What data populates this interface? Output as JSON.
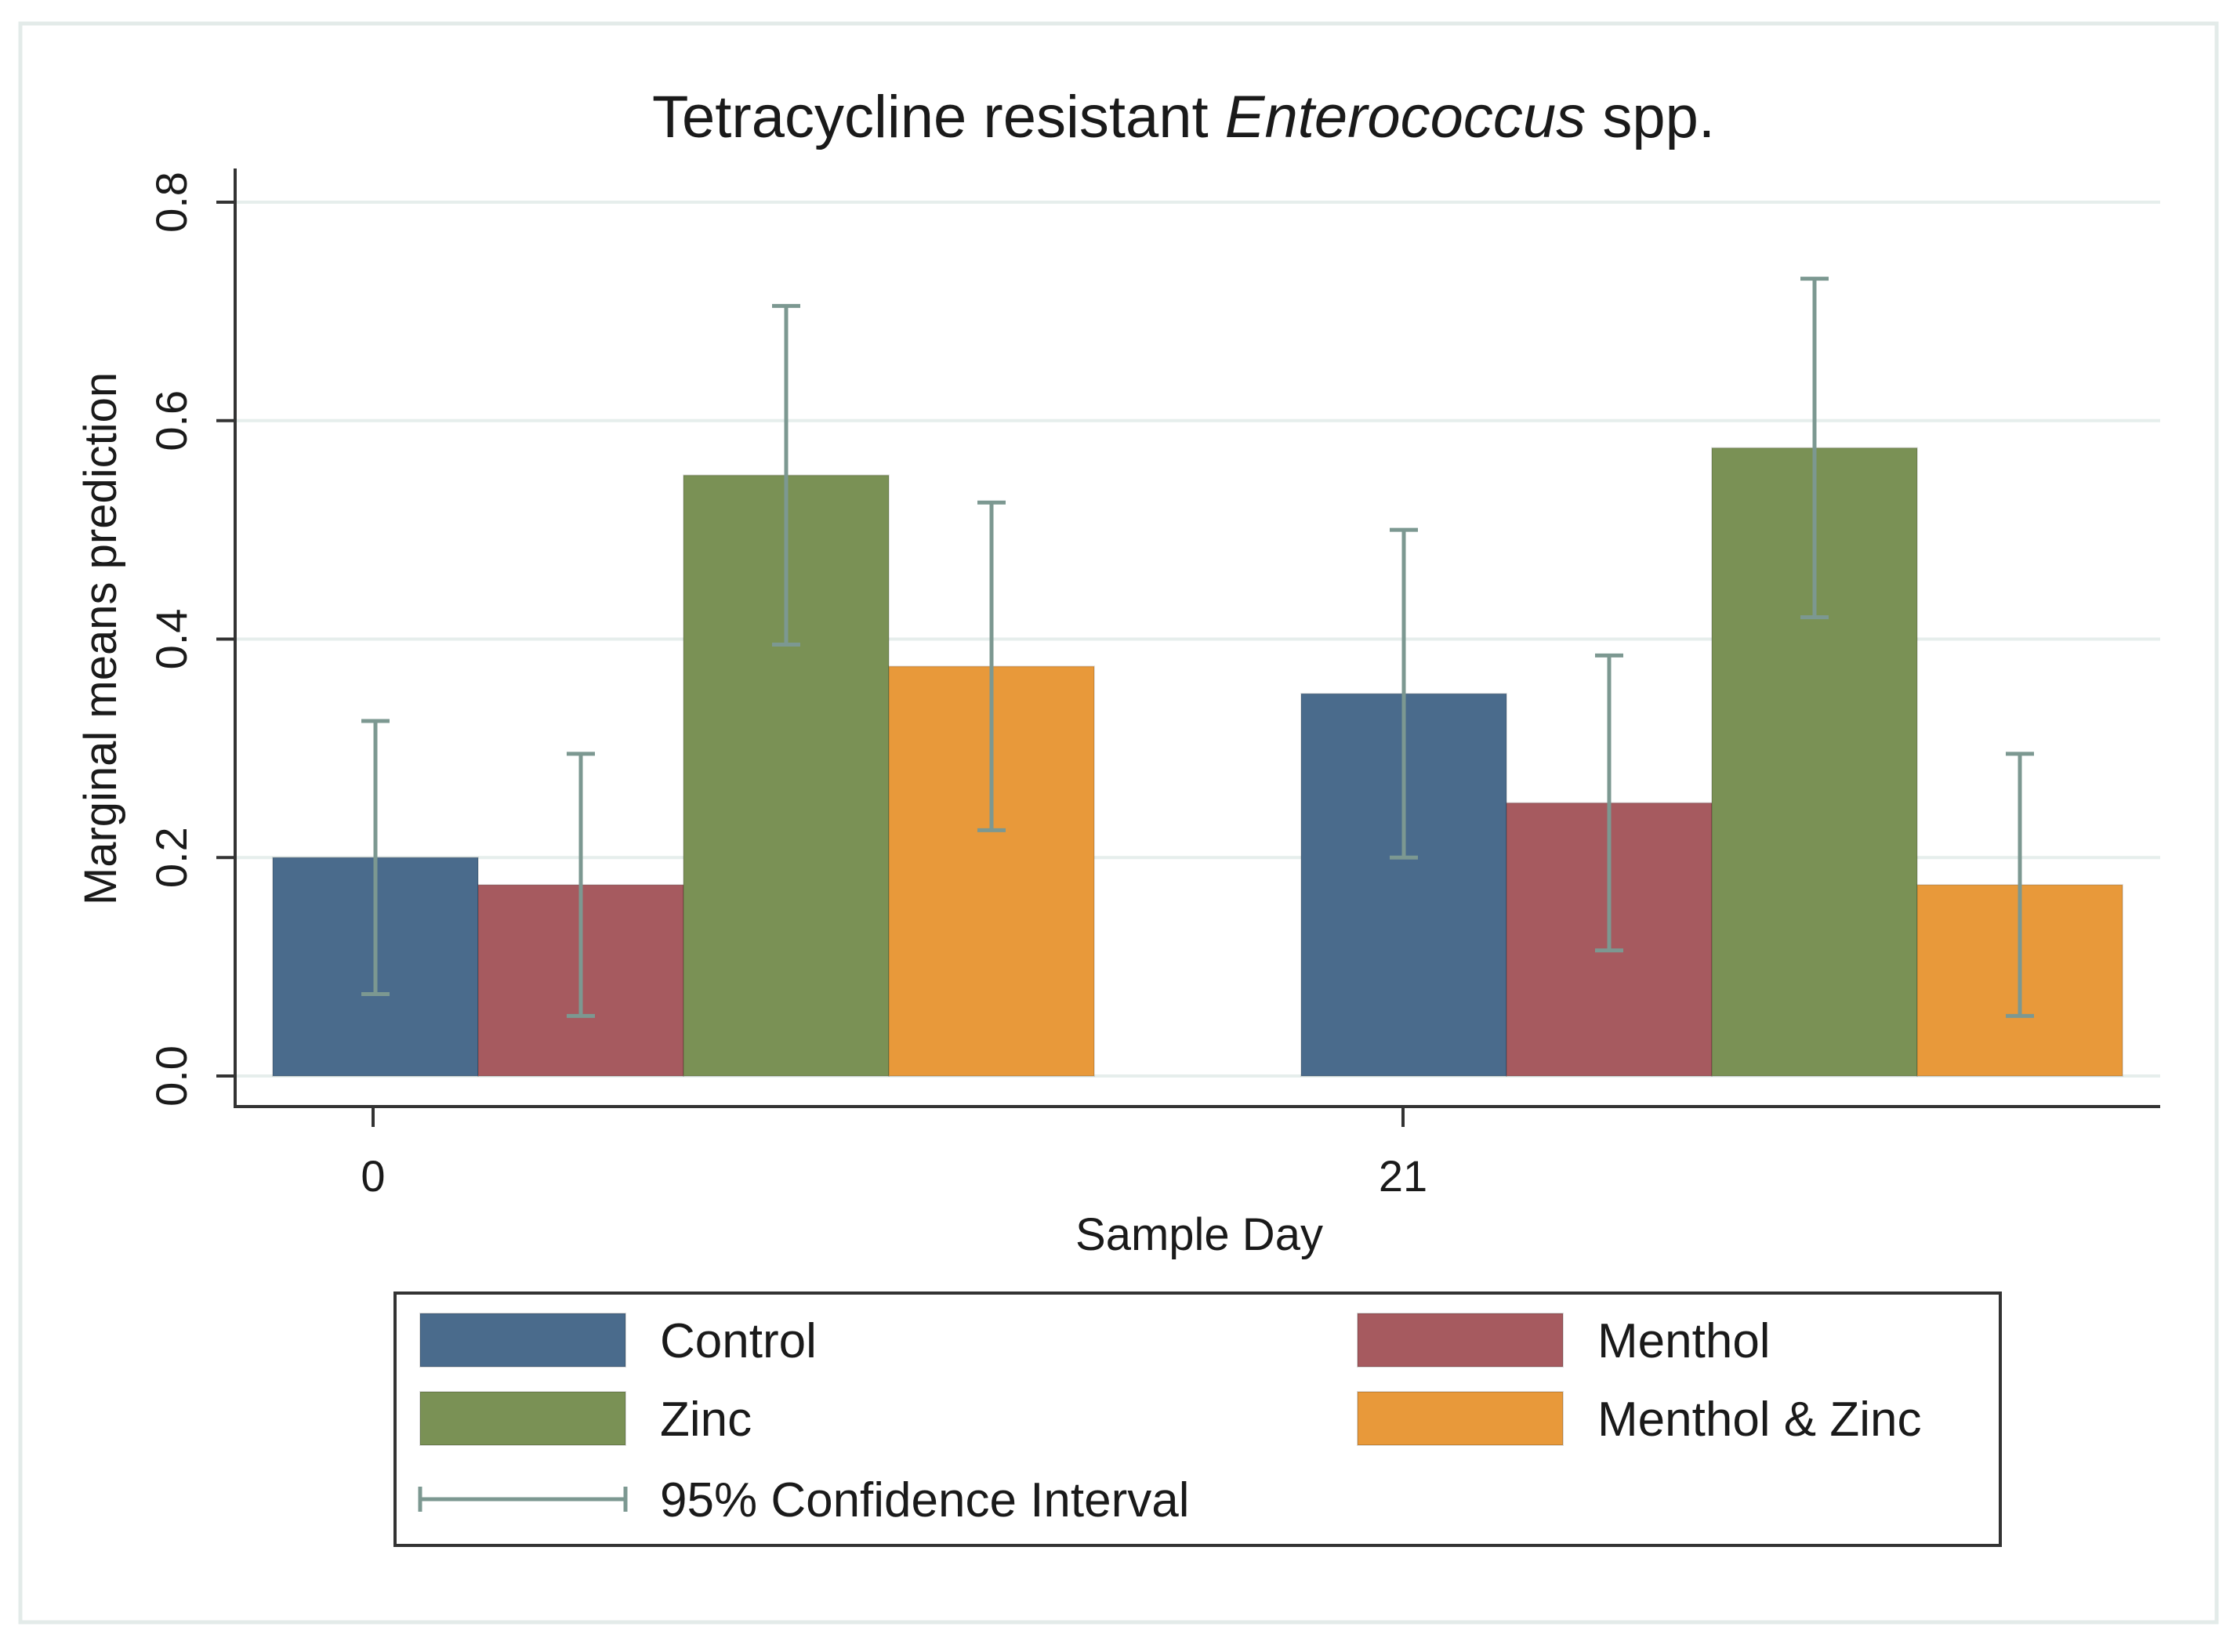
{
  "chart_data": {
    "type": "bar",
    "title": {
      "prefix": "Tetracycline resistant ",
      "italic": "Enterococcus",
      "suffix": " spp."
    },
    "xlabel": "Sample Day",
    "ylabel": "Marginal means prediction",
    "categories": [
      "0",
      "21"
    ],
    "ylim": [
      0,
      0.8
    ],
    "yticks": [
      "0.0",
      "0.2",
      "0.4",
      "0.6",
      "0.8"
    ],
    "ytick_values": [
      0,
      0.2,
      0.4,
      0.6,
      0.8
    ],
    "grid": true,
    "series": [
      {
        "name": "Control",
        "color": "#4a6b8c",
        "values": [
          0.2,
          0.35
        ],
        "ci_low": [
          0.075,
          0.2
        ],
        "ci_high": [
          0.325,
          0.5
        ]
      },
      {
        "name": "Menthol",
        "color": "#a65a5f",
        "values": [
          0.175,
          0.25
        ],
        "ci_low": [
          0.055,
          0.115
        ],
        "ci_high": [
          0.295,
          0.385
        ]
      },
      {
        "name": "Zinc",
        "color": "#7a9155",
        "values": [
          0.55,
          0.575
        ],
        "ci_low": [
          0.395,
          0.42
        ],
        "ci_high": [
          0.705,
          0.73
        ]
      },
      {
        "name": "Menthol & Zinc",
        "color": "#e8993a",
        "values": [
          0.375,
          0.175
        ],
        "ci_low": [
          0.225,
          0.055
        ],
        "ci_high": [
          0.525,
          0.295
        ]
      }
    ],
    "ci_label": "95% Confidence Interval",
    "ci_color": "#7c9891",
    "legend_position": "bottom"
  }
}
